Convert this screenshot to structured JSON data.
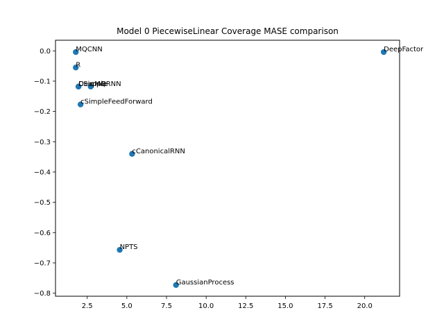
{
  "chart_data": {
    "type": "scatter",
    "title": "Model 0 PiecewiseLinear Coverage MASE comparison",
    "xlabel": "",
    "ylabel": "",
    "xlim": [
      0.5,
      22.2
    ],
    "ylim": [
      -0.81,
      0.035
    ],
    "xticks": [
      2.5,
      5.0,
      7.5,
      10.0,
      12.5,
      15.0,
      17.5,
      20.0
    ],
    "xtick_labels": [
      "2.5",
      "5.0",
      "7.5",
      "10.0",
      "12.5",
      "15.0",
      "17.5",
      "20.0"
    ],
    "yticks": [
      0.0,
      -0.1,
      -0.2,
      -0.3,
      -0.4,
      -0.5,
      -0.6,
      -0.7,
      -0.8
    ],
    "ytick_labels": [
      "0.0",
      "−0.1",
      "−0.2",
      "−0.3",
      "−0.4",
      "−0.5",
      "−0.6",
      "−0.7",
      "−0.8"
    ],
    "grid": false,
    "color": "#1f77b4",
    "points": [
      {
        "label": "MQCNN",
        "x": 1.78,
        "y": -0.004
      },
      {
        "label": "R",
        "x": 1.78,
        "y": -0.055
      },
      {
        "label": "DeepAR",
        "x": 1.95,
        "y": -0.118
      },
      {
        "label": "CSimple",
        "x": 1.95,
        "y": -0.118
      },
      {
        "label": "cMQRNN",
        "x": 2.72,
        "y": -0.118
      },
      {
        "label": "cSimpleFeedForward",
        "x": 2.08,
        "y": -0.177
      },
      {
        "label": "cCanonicalRNN",
        "x": 5.33,
        "y": -0.34
      },
      {
        "label": "NPTS",
        "x": 4.55,
        "y": -0.657
      },
      {
        "label": "GaussianProcess",
        "x": 8.1,
        "y": -0.773
      },
      {
        "label": "DeepFactor",
        "x": 21.2,
        "y": -0.004
      }
    ]
  }
}
